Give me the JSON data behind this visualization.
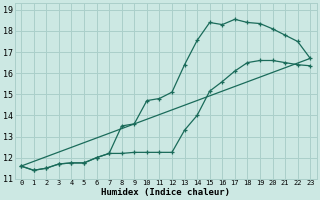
{
  "xlabel": "Humidex (Indice chaleur)",
  "background_color": "#cce8e3",
  "grid_color": "#aacfca",
  "line_color": "#1a6b5a",
  "xlim": [
    -0.5,
    23.5
  ],
  "ylim": [
    11.0,
    19.3
  ],
  "yticks": [
    11,
    12,
    13,
    14,
    15,
    16,
    17,
    18,
    19
  ],
  "xticks": [
    0,
    1,
    2,
    3,
    4,
    5,
    6,
    7,
    8,
    9,
    10,
    11,
    12,
    13,
    14,
    15,
    16,
    17,
    18,
    19,
    20,
    21,
    22,
    23
  ],
  "line1_x": [
    0,
    1,
    2,
    3,
    4,
    5,
    6,
    7,
    8,
    9,
    10,
    11,
    12,
    13,
    14,
    15,
    16,
    17,
    18,
    19,
    20,
    21,
    22,
    23
  ],
  "line1_y": [
    11.6,
    11.4,
    11.5,
    11.7,
    11.75,
    11.75,
    12.0,
    12.2,
    13.5,
    13.6,
    14.7,
    14.8,
    15.1,
    16.4,
    17.55,
    18.4,
    18.3,
    18.55,
    18.4,
    18.35,
    18.1,
    17.8,
    17.5,
    16.7
  ],
  "line2_x": [
    0,
    1,
    2,
    3,
    4,
    5,
    6,
    7,
    8,
    9,
    10,
    11,
    12,
    13,
    14,
    15,
    16,
    17,
    18,
    19,
    20,
    21,
    22,
    23
  ],
  "line2_y": [
    11.6,
    11.4,
    11.5,
    11.7,
    11.75,
    11.75,
    12.0,
    12.2,
    12.2,
    12.25,
    12.25,
    12.25,
    12.25,
    13.3,
    14.0,
    15.15,
    15.6,
    16.1,
    16.5,
    16.6,
    16.6,
    16.5,
    16.4,
    16.35
  ],
  "line3_x": [
    0,
    23
  ],
  "line3_y": [
    11.6,
    16.7
  ]
}
